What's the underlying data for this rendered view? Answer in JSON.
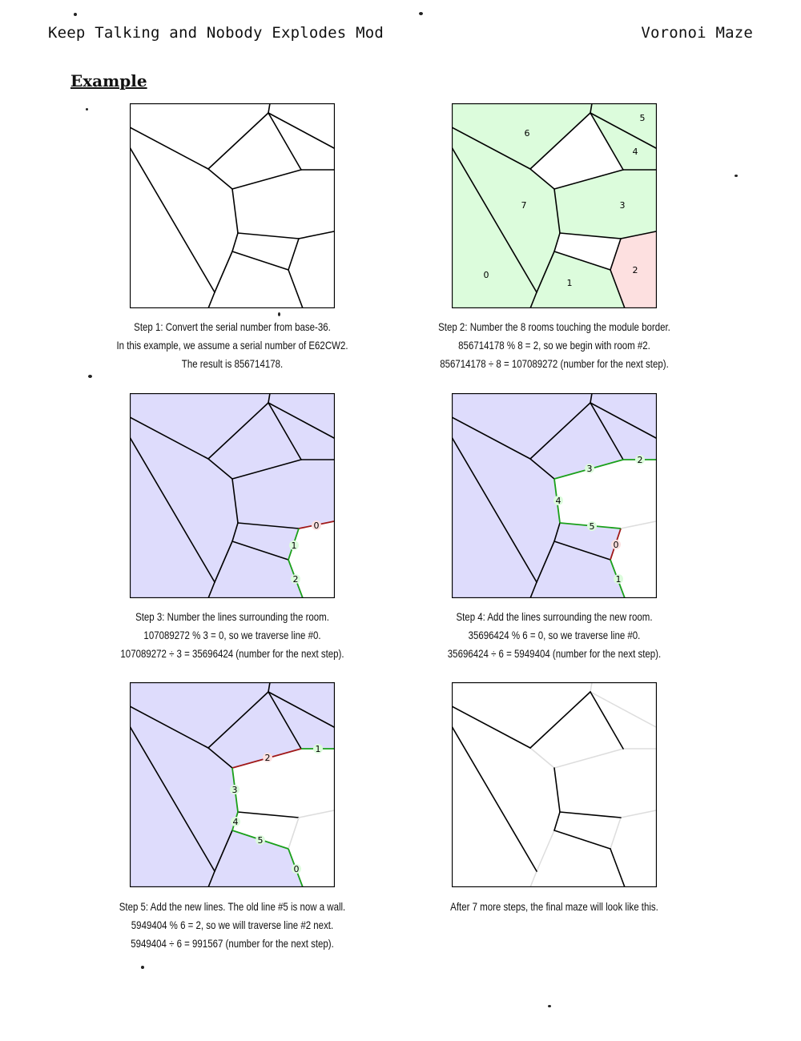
{
  "header": {
    "left": "Keep Talking and Nobody Explodes Mod",
    "right": "Voronoi Maze"
  },
  "section_title": "Example",
  "colors": {
    "room_green": "#dcfcdc",
    "room_red": "#fde0e0",
    "room_blue": "#dedcfc",
    "edge_green": "#1aa01a",
    "edge_red": "#a01818",
    "faded": "#dddddd"
  },
  "panels": [
    {
      "caption": [
        "Step 1: Convert the serial number from base-36.",
        "In this example, we assume a serial number of E62CW2.",
        "The result is 856714178."
      ]
    },
    {
      "caption": [
        "Step 2: Number the 8 rooms touching the module border.",
        "856714178 % 8 = 2, so we begin with room #2.",
        "856714178 ÷ 8 = 107089272 (number for the next step)."
      ],
      "room_labels": [
        "0",
        "1",
        "2",
        "3",
        "4",
        "5",
        "6",
        "7"
      ]
    },
    {
      "caption": [
        "Step 3: Number the lines surrounding the room.",
        "107089272 % 3 = 0, so we traverse line #0.",
        "107089272 ÷ 3 = 35696424 (number for the next step)."
      ],
      "line_labels": [
        "0",
        "1",
        "2"
      ]
    },
    {
      "caption": [
        "Step 4: Add the lines surrounding the new room.",
        "35696424 % 6 = 0, so we traverse line #0.",
        "35696424 ÷ 6 = 5949404 (number for the next step)."
      ],
      "line_labels": [
        "0",
        "1",
        "2",
        "3",
        "4",
        "5"
      ]
    },
    {
      "caption": [
        "Step 5: Add the new lines. The old line #5 is now a wall.",
        "5949404 % 6 = 2, so we will traverse line #2 next.",
        "5949404 ÷ 6 = 991567 (number for the next step)."
      ],
      "line_labels": [
        "0",
        "1",
        "2",
        "3",
        "4",
        "5"
      ]
    },
    {
      "caption": [
        "After 7 more steps, the final maze will look like this."
      ]
    }
  ]
}
